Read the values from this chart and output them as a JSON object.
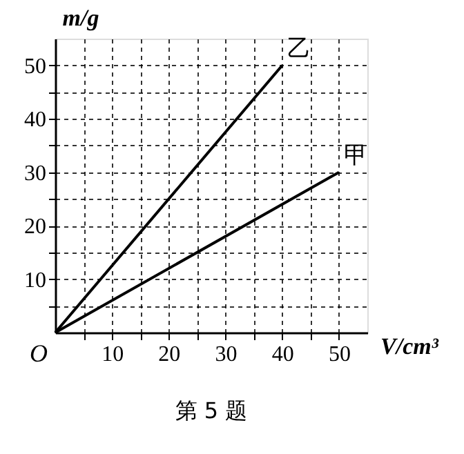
{
  "chart_data": {
    "type": "line",
    "xlabel": "V/cm³",
    "ylabel": "m/g",
    "xlim": [
      0,
      55
    ],
    "ylim": [
      0,
      55
    ],
    "xticks": [
      {
        "value": 5,
        "label": null
      },
      10,
      {
        "value": 15,
        "label": null
      },
      20,
      {
        "value": 25,
        "label": null
      },
      30,
      {
        "value": 35,
        "label": null
      },
      40,
      {
        "value": 45,
        "label": null
      },
      50
    ],
    "yticks": [
      {
        "value": 5,
        "label": null
      },
      10,
      {
        "value": 15,
        "label": null
      },
      20,
      {
        "value": 25,
        "label": null
      },
      30,
      {
        "value": 35,
        "label": null
      },
      40,
      {
        "value": 45,
        "label": null
      },
      50
    ],
    "grid": true,
    "line_style": "solid",
    "marker": "none",
    "series": [
      {
        "name": "乙",
        "color": "#000000",
        "x": [
          0,
          40
        ],
        "values": [
          0,
          50
        ]
      },
      {
        "name": "甲",
        "color": "#000000",
        "x": [
          0,
          50
        ],
        "values": [
          0,
          30
        ]
      }
    ],
    "annotations": [
      {
        "text": "O",
        "x": 0,
        "y": 0
      },
      "第 5 题"
    ]
  }
}
